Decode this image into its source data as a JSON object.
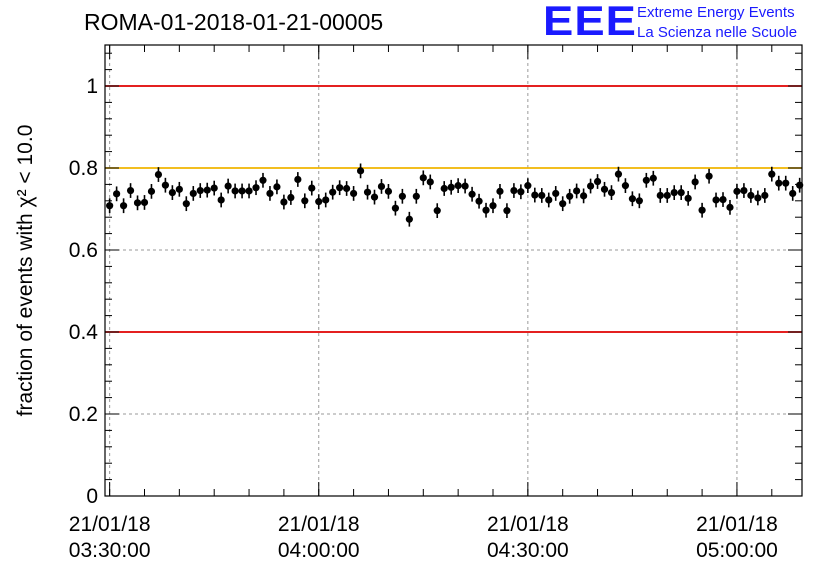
{
  "title": "ROMA-01-2018-01-21-00005",
  "logo": {
    "mark": "EEE",
    "line1": "Extreme Energy Events",
    "line2": "La Scienza nelle Scuole",
    "color": "#1a1aff"
  },
  "chart_data": {
    "type": "scatter",
    "title": "ROMA-01-2018-01-21-00005",
    "ylabel": "fraction of events with χ² < 10.0",
    "xlabel": "",
    "x_start": "21/01/18 03:29:20",
    "x_end": "21/01/18 05:09:20",
    "ylim": [
      0,
      1.1
    ],
    "y_ticks": [
      "0",
      "0.2",
      "0.4",
      "0.6",
      "0.8",
      "1"
    ],
    "x_ticks": [
      {
        "date": "21/01/18",
        "time": "03:30:00"
      },
      {
        "date": "21/01/18",
        "time": "04:00:00"
      },
      {
        "date": "21/01/18",
        "time": "04:30:00"
      },
      {
        "date": "21/01/18",
        "time": "05:00:00"
      }
    ],
    "grid": true,
    "reference_lines": [
      {
        "y": 1.0,
        "color": "#e00000"
      },
      {
        "y": 0.8,
        "color": "#f0b400"
      },
      {
        "y": 0.4,
        "color": "#e00000"
      }
    ],
    "series": [
      {
        "marker_color": "#000000",
        "x": [
          "03:30:00",
          "03:31:00",
          "03:32:00",
          "03:33:00",
          "03:34:00",
          "03:35:00",
          "03:36:00",
          "03:37:00",
          "03:38:00",
          "03:39:00",
          "03:40:00",
          "03:41:00",
          "03:42:00",
          "03:43:00",
          "03:44:00",
          "03:45:00",
          "03:46:00",
          "03:47:00",
          "03:48:00",
          "03:49:00",
          "03:50:00",
          "03:51:00",
          "03:52:00",
          "03:53:00",
          "03:54:00",
          "03:55:00",
          "03:56:00",
          "03:57:00",
          "03:58:00",
          "03:59:00",
          "04:00:00",
          "04:01:00",
          "04:02:00",
          "04:03:00",
          "04:04:00",
          "04:05:00",
          "04:06:00",
          "04:07:00",
          "04:08:00",
          "04:09:00",
          "04:10:00",
          "04:11:00",
          "04:12:00",
          "04:13:00",
          "04:14:00",
          "04:15:00",
          "04:16:00",
          "04:17:00",
          "04:18:00",
          "04:19:00",
          "04:20:00",
          "04:21:00",
          "04:22:00",
          "04:23:00",
          "04:24:00",
          "04:25:00",
          "04:26:00",
          "04:27:00",
          "04:28:00",
          "04:29:00",
          "04:30:00",
          "04:31:00",
          "04:32:00",
          "04:33:00",
          "04:34:00",
          "04:35:00",
          "04:36:00",
          "04:37:00",
          "04:38:00",
          "04:39:00",
          "04:40:00",
          "04:41:00",
          "04:42:00",
          "04:43:00",
          "04:44:00",
          "04:45:00",
          "04:46:00",
          "04:47:00",
          "04:48:00",
          "04:49:00",
          "04:50:00",
          "04:51:00",
          "04:52:00",
          "04:53:00",
          "04:54:00",
          "04:55:00",
          "04:56:00",
          "04:57:00",
          "04:58:00",
          "04:59:00",
          "05:00:00",
          "05:01:00",
          "05:02:00",
          "05:03:00",
          "05:04:00",
          "05:05:00",
          "05:06:00",
          "05:07:00",
          "05:08:00",
          "05:09:00"
        ],
        "y": [
          0.708,
          0.737,
          0.708,
          0.745,
          0.715,
          0.716,
          0.743,
          0.784,
          0.758,
          0.74,
          0.748,
          0.713,
          0.738,
          0.745,
          0.746,
          0.751,
          0.722,
          0.756,
          0.744,
          0.744,
          0.744,
          0.752,
          0.77,
          0.738,
          0.754,
          0.717,
          0.728,
          0.772,
          0.72,
          0.751,
          0.718,
          0.722,
          0.741,
          0.752,
          0.75,
          0.738,
          0.793,
          0.741,
          0.729,
          0.755,
          0.743,
          0.702,
          0.731,
          0.675,
          0.731,
          0.776,
          0.766,
          0.696,
          0.75,
          0.753,
          0.757,
          0.756,
          0.736,
          0.719,
          0.697,
          0.708,
          0.743,
          0.696,
          0.745,
          0.742,
          0.757,
          0.734,
          0.733,
          0.722,
          0.738,
          0.713,
          0.731,
          0.744,
          0.732,
          0.756,
          0.767,
          0.748,
          0.74,
          0.785,
          0.757,
          0.725,
          0.72,
          0.77,
          0.775,
          0.733,
          0.733,
          0.74,
          0.74,
          0.726,
          0.766,
          0.697,
          0.78,
          0.722,
          0.723,
          0.704,
          0.743,
          0.745,
          0.733,
          0.727,
          0.733,
          0.785,
          0.763,
          0.763,
          0.738,
          0.758
        ],
        "err": 0.018
      }
    ]
  }
}
